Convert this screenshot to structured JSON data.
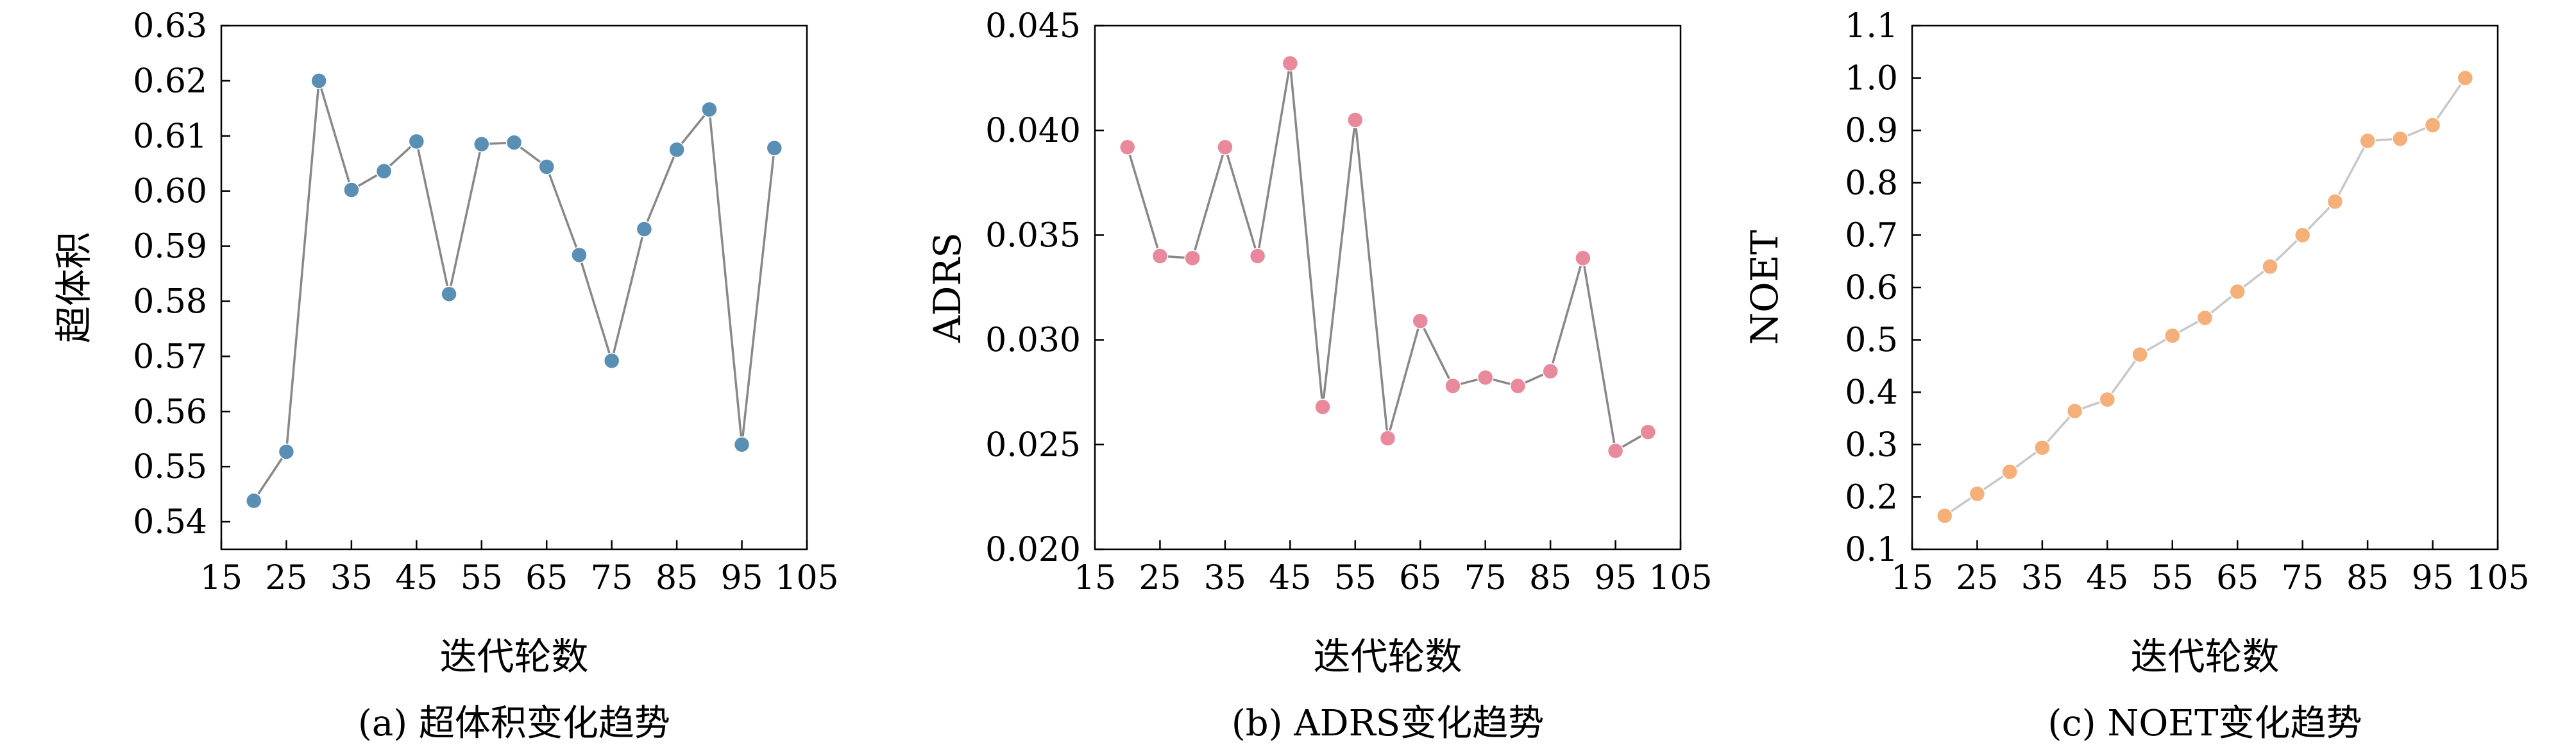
{
  "chart_data": [
    {
      "type": "line",
      "caption": "(a) 超体积变化趋势",
      "xlabel": "迭代轮数",
      "ylabel": "超体积",
      "xlim": [
        15,
        105
      ],
      "ylim": [
        0.535,
        0.63
      ],
      "x_ticks": [
        15,
        25,
        35,
        45,
        55,
        65,
        75,
        85,
        95,
        105
      ],
      "x_tick_labels": [
        "15",
        "25",
        "35",
        "45",
        "55",
        "65",
        "75",
        "85",
        "95",
        "105"
      ],
      "y_ticks": [
        0.54,
        0.55,
        0.56,
        0.57,
        0.58,
        0.59,
        0.6,
        0.61,
        0.62,
        0.63
      ],
      "y_tick_labels": [
        "0.54",
        "0.55",
        "0.56",
        "0.57",
        "0.58",
        "0.59",
        "0.60",
        "0.61",
        "0.62",
        "0.63"
      ],
      "grid": false,
      "marker_color": "#5a8fb5",
      "line_color": "#888888",
      "series": [
        {
          "x": [
            20,
            25,
            30,
            35,
            40,
            45,
            50,
            55,
            60,
            65,
            70,
            75,
            80,
            85,
            90,
            95,
            100
          ],
          "values": [
            0.5438,
            0.5527,
            0.62,
            0.6002,
            0.6036,
            0.609,
            0.5813,
            0.6085,
            0.6088,
            0.6044,
            0.5884,
            0.5692,
            0.5931,
            0.6075,
            0.6148,
            0.554,
            0.6078
          ]
        }
      ]
    },
    {
      "type": "line",
      "caption": "(b) ADRS变化趋势",
      "xlabel": "迭代轮数",
      "ylabel": "ADRS",
      "xlim": [
        15,
        105
      ],
      "ylim": [
        0.02,
        0.045
      ],
      "x_ticks": [
        15,
        25,
        35,
        45,
        55,
        65,
        75,
        85,
        95,
        105
      ],
      "x_tick_labels": [
        "15",
        "25",
        "35",
        "45",
        "55",
        "65",
        "75",
        "85",
        "95",
        "105"
      ],
      "y_ticks": [
        0.02,
        0.025,
        0.03,
        0.035,
        0.04,
        0.045
      ],
      "y_tick_labels": [
        "0.020",
        "0.025",
        "0.030",
        "0.035",
        "0.040",
        "0.045"
      ],
      "grid": false,
      "marker_color": "#e88a9c",
      "line_color": "#888888",
      "series": [
        {
          "x": [
            20,
            25,
            30,
            35,
            40,
            45,
            50,
            55,
            60,
            65,
            70,
            75,
            80,
            85,
            90,
            95,
            100
          ],
          "values": [
            0.0392,
            0.034,
            0.0339,
            0.0392,
            0.034,
            0.0432,
            0.0268,
            0.0405,
            0.0253,
            0.0309,
            0.0278,
            0.0282,
            0.0278,
            0.0285,
            0.0339,
            0.0247,
            0.0256
          ]
        }
      ]
    },
    {
      "type": "line",
      "caption": "(c) NOET变化趋势",
      "xlabel": "迭代轮数",
      "ylabel": "NOET",
      "xlim": [
        15,
        105
      ],
      "ylim": [
        0.1,
        1.1
      ],
      "x_ticks": [
        15,
        25,
        35,
        45,
        55,
        65,
        75,
        85,
        95,
        105
      ],
      "x_tick_labels": [
        "15",
        "25",
        "35",
        "45",
        "55",
        "65",
        "75",
        "85",
        "95",
        "105"
      ],
      "y_ticks": [
        0.1,
        0.2,
        0.3,
        0.4,
        0.5,
        0.6,
        0.7,
        0.8,
        0.9,
        1.0,
        1.1
      ],
      "y_tick_labels": [
        "0.1",
        "0.2",
        "0.3",
        "0.4",
        "0.5",
        "0.6",
        "0.7",
        "0.8",
        "0.9",
        "1.0",
        "1.1"
      ],
      "grid": false,
      "marker_color": "#f5b07a",
      "line_color": "#c8c8c8",
      "series": [
        {
          "x": [
            20,
            25,
            30,
            35,
            40,
            45,
            50,
            55,
            60,
            65,
            70,
            75,
            80,
            85,
            90,
            95,
            100
          ],
          "values": [
            0.164,
            0.206,
            0.248,
            0.294,
            0.364,
            0.386,
            0.472,
            0.508,
            0.542,
            0.592,
            0.64,
            0.7,
            0.764,
            0.88,
            0.884,
            0.91,
            1.0
          ]
        }
      ]
    }
  ]
}
